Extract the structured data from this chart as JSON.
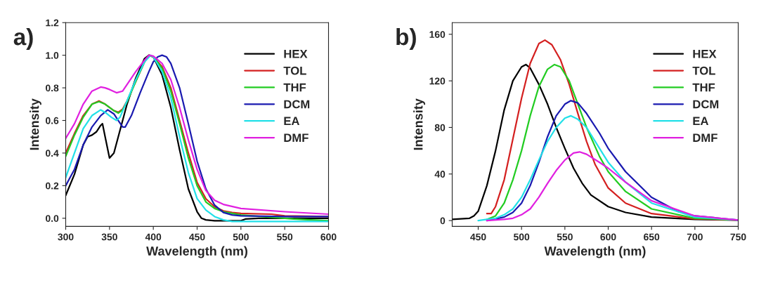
{
  "chart_data": [
    {
      "type": "line",
      "title": "a)",
      "xlabel": "Wavelength (nm)",
      "ylabel": "Intensity",
      "xlim": [
        300,
        600
      ],
      "xticks": [
        300,
        350,
        400,
        450,
        500,
        550,
        600
      ],
      "ylim": [
        -0.05,
        1.2
      ],
      "yticks": [
        {
          "value": 0,
          "label": "0.0"
        },
        0.2,
        0.4,
        0.6,
        0.8,
        {
          "value": 1,
          "label": "1.0"
        },
        1.2
      ],
      "grid": false,
      "legend": "top right",
      "series": [
        {
          "name": "HEX",
          "color": "#000000",
          "x": [
            300,
            310,
            320,
            325,
            330,
            335,
            340,
            342,
            345,
            350,
            355,
            360,
            370,
            380,
            390,
            395,
            400,
            410,
            420,
            430,
            440,
            450,
            455,
            460,
            470,
            500,
            505,
            520,
            600
          ],
          "values": [
            0.14,
            0.27,
            0.45,
            0.5,
            0.51,
            0.53,
            0.57,
            0.58,
            0.5,
            0.37,
            0.4,
            0.5,
            0.7,
            0.86,
            0.98,
            1.0,
            0.99,
            0.88,
            0.68,
            0.42,
            0.18,
            0.04,
            0.0,
            -0.01,
            -0.015,
            -0.015,
            -0.005,
            0.0,
            0.0
          ]
        },
        {
          "name": "TOL",
          "color": "#d42020",
          "x": [
            300,
            310,
            320,
            330,
            338,
            345,
            355,
            360,
            365,
            370,
            380,
            390,
            395,
            400,
            410,
            420,
            430,
            440,
            450,
            460,
            470,
            480,
            490,
            500,
            535,
            550,
            600
          ],
          "values": [
            0.4,
            0.52,
            0.63,
            0.7,
            0.72,
            0.7,
            0.66,
            0.65,
            0.67,
            0.72,
            0.84,
            0.96,
            1.0,
            0.99,
            0.93,
            0.8,
            0.6,
            0.4,
            0.22,
            0.12,
            0.07,
            0.045,
            0.035,
            0.03,
            0.025,
            0.015,
            0.01
          ]
        },
        {
          "name": "THF",
          "color": "#22cc22",
          "x": [
            300,
            310,
            320,
            330,
            338,
            345,
            355,
            360,
            365,
            370,
            380,
            390,
            395,
            400,
            410,
            420,
            430,
            440,
            450,
            460,
            470,
            480,
            500,
            550,
            560,
            600
          ],
          "values": [
            0.38,
            0.51,
            0.62,
            0.7,
            0.715,
            0.7,
            0.66,
            0.645,
            0.665,
            0.715,
            0.84,
            0.96,
            1.0,
            0.99,
            0.92,
            0.78,
            0.58,
            0.37,
            0.2,
            0.1,
            0.06,
            0.04,
            0.02,
            0.0,
            -0.005,
            -0.015
          ]
        },
        {
          "name": "DCM",
          "color": "#1a1ab0",
          "x": [
            300,
            310,
            320,
            330,
            340,
            348,
            355,
            360,
            365,
            368,
            375,
            385,
            395,
            400,
            405,
            410,
            415,
            420,
            430,
            440,
            450,
            460,
            470,
            480,
            490,
            500,
            550,
            600
          ],
          "values": [
            0.2,
            0.3,
            0.45,
            0.56,
            0.63,
            0.665,
            0.64,
            0.6,
            0.56,
            0.56,
            0.63,
            0.77,
            0.9,
            0.96,
            0.99,
            1.0,
            0.99,
            0.95,
            0.8,
            0.58,
            0.35,
            0.18,
            0.08,
            0.035,
            0.02,
            0.015,
            0.01,
            0.01
          ]
        },
        {
          "name": "EA",
          "color": "#22e0e8",
          "x": [
            300,
            310,
            320,
            330,
            340,
            345,
            352,
            358,
            362,
            370,
            380,
            390,
            397,
            400,
            410,
            420,
            430,
            440,
            450,
            460,
            470,
            480,
            490,
            600
          ],
          "values": [
            0.25,
            0.4,
            0.55,
            0.63,
            0.665,
            0.65,
            0.62,
            0.6,
            0.62,
            0.72,
            0.85,
            0.96,
            1.0,
            0.99,
            0.9,
            0.74,
            0.5,
            0.28,
            0.12,
            0.05,
            0.01,
            -0.01,
            -0.02,
            -0.02
          ]
        },
        {
          "name": "DMF",
          "color": "#e020e0",
          "x": [
            300,
            310,
            320,
            330,
            340,
            345,
            350,
            358,
            365,
            370,
            380,
            390,
            395,
            400,
            410,
            420,
            430,
            440,
            450,
            460,
            470,
            480,
            500,
            550,
            600
          ],
          "values": [
            0.49,
            0.58,
            0.7,
            0.78,
            0.805,
            0.8,
            0.79,
            0.77,
            0.78,
            0.82,
            0.9,
            0.97,
            1.0,
            0.995,
            0.95,
            0.85,
            0.68,
            0.48,
            0.3,
            0.17,
            0.11,
            0.085,
            0.06,
            0.04,
            0.025
          ]
        }
      ]
    },
    {
      "type": "line",
      "title": "b)",
      "xlabel": "Wavelength (nm)",
      "ylabel": "Intensity",
      "xlim": [
        420,
        750
      ],
      "xticks": [
        450,
        500,
        550,
        600,
        650,
        700,
        750
      ],
      "ylim": [
        -5,
        170
      ],
      "yticks": [
        0,
        40,
        80,
        120,
        160
      ],
      "grid": false,
      "legend": "top right",
      "series": [
        {
          "name": "HEX",
          "color": "#000000",
          "x": [
            420,
            440,
            445,
            450,
            460,
            470,
            480,
            490,
            500,
            505,
            510,
            520,
            530,
            540,
            550,
            560,
            570,
            580,
            600,
            620,
            650,
            700,
            750
          ],
          "values": [
            1,
            2,
            4,
            8,
            30,
            60,
            95,
            120,
            132,
            134,
            131,
            117,
            100,
            80,
            62,
            45,
            32,
            22,
            12,
            7,
            3,
            1,
            0.5
          ]
        },
        {
          "name": "TOL",
          "color": "#d42020",
          "x": [
            460,
            465,
            470,
            480,
            490,
            500,
            510,
            520,
            527,
            535,
            545,
            555,
            565,
            575,
            585,
            600,
            620,
            650,
            700,
            750
          ],
          "values": [
            6,
            6,
            12,
            35,
            70,
            105,
            135,
            152,
            155,
            151,
            138,
            117,
            92,
            68,
            48,
            28,
            15,
            6,
            1.5,
            0.5
          ]
        },
        {
          "name": "THF",
          "color": "#22cc22",
          "x": [
            460,
            470,
            480,
            490,
            500,
            510,
            520,
            530,
            538,
            545,
            555,
            565,
            575,
            590,
            600,
            620,
            650,
            700,
            750
          ],
          "values": [
            1,
            4,
            15,
            35,
            60,
            90,
            115,
            130,
            134,
            132,
            120,
            100,
            80,
            55,
            42,
            25,
            10,
            2,
            0.5
          ]
        },
        {
          "name": "DCM",
          "color": "#1a1ab0",
          "x": [
            460,
            480,
            490,
            500,
            510,
            520,
            530,
            540,
            550,
            557,
            565,
            575,
            590,
            600,
            620,
            650,
            680,
            700,
            750
          ],
          "values": [
            0,
            3,
            7,
            15,
            30,
            50,
            72,
            90,
            100,
            103,
            101,
            92,
            75,
            62,
            42,
            20,
            8,
            4,
            0.5
          ]
        },
        {
          "name": "EA",
          "color": "#22e0e8",
          "x": [
            450,
            460,
            470,
            480,
            490,
            500,
            510,
            520,
            530,
            540,
            550,
            557,
            565,
            575,
            590,
            600,
            620,
            650,
            700,
            750
          ],
          "values": [
            0,
            1,
            2,
            5,
            10,
            20,
            35,
            52,
            68,
            80,
            88,
            90,
            87,
            80,
            62,
            50,
            33,
            15,
            3,
            0.5
          ]
        },
        {
          "name": "DMF",
          "color": "#e020e0",
          "x": [
            460,
            480,
            490,
            500,
            510,
            520,
            530,
            540,
            550,
            560,
            567,
            575,
            590,
            600,
            620,
            650,
            700,
            750
          ],
          "values": [
            0,
            1,
            2,
            5,
            10,
            20,
            32,
            43,
            52,
            58,
            59,
            57,
            50,
            45,
            33,
            17,
            4,
            0.5
          ]
        }
      ]
    }
  ]
}
